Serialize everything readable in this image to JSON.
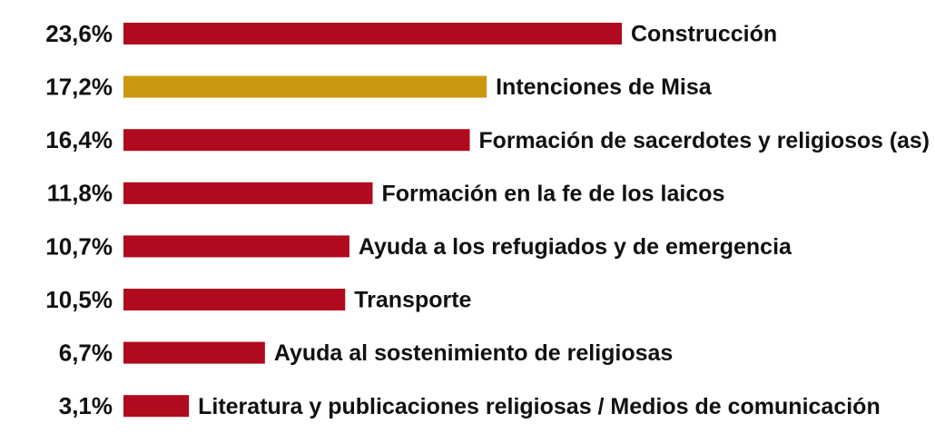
{
  "chart_data": {
    "type": "bar",
    "orientation": "horizontal",
    "categories": [
      "Construcción",
      "Intenciones de Misa",
      "Formación de sacerdotes y religiosos (as)",
      "Formación en la fe de los laicos",
      "Ayuda a los refugiados y de emergencia",
      "Transporte",
      "Ayuda al sostenimiento de religiosas",
      "Literatura y publicaciones religiosas / Medios de comunicación"
    ],
    "values": [
      23.6,
      17.2,
      16.4,
      11.8,
      10.7,
      10.5,
      6.7,
      3.1
    ],
    "value_labels": [
      "23,6%",
      "17,2%",
      "16,4%",
      "11,8%",
      "10,7%",
      "10,5%",
      "6,7%",
      "3,1%"
    ],
    "colors": [
      "#b00a1e",
      "#cc9810",
      "#b00a1e",
      "#b00a1e",
      "#b00a1e",
      "#b00a1e",
      "#b00a1e",
      "#b00a1e"
    ]
  }
}
